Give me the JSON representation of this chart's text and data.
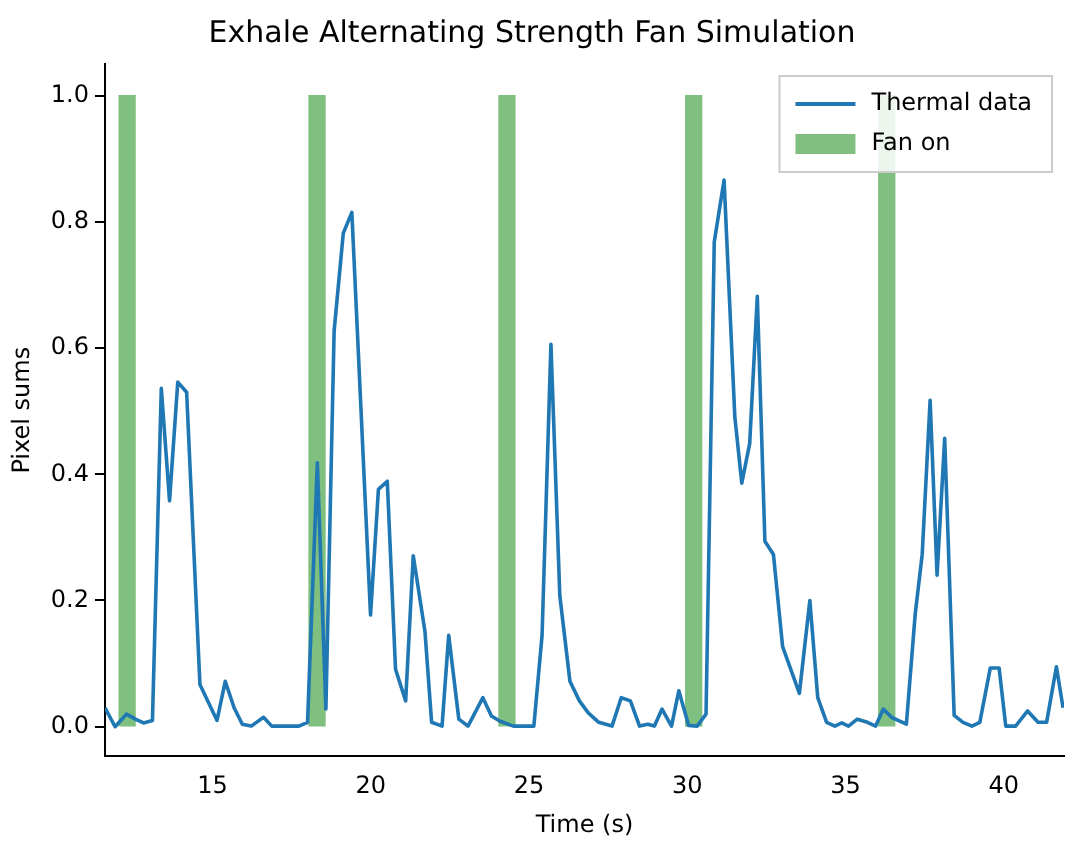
{
  "chart_data": {
    "type": "line",
    "title": "Exhale Alternating Strength Fan Simulation",
    "xlabel": "Time (s)",
    "ylabel": "Pixel sums",
    "xlim": [
      11.6,
      41.9
    ],
    "xticks": [
      15,
      20,
      25,
      30,
      35,
      40
    ],
    "ylim": [
      -0.047,
      1.05
    ],
    "yticks": [
      {
        "value": 0,
        "label": "0.0"
      },
      {
        "value": 0.2,
        "label": "0.2"
      },
      {
        "value": 0.4,
        "label": "0.4"
      },
      {
        "value": 0.6,
        "label": "0.6"
      },
      {
        "value": 0.8,
        "label": "0.8"
      },
      {
        "value": 1,
        "label": "1.0"
      }
    ],
    "grid": false,
    "legend": "top right",
    "marker": "none",
    "line_style": "solid",
    "series": [
      {
        "name": "Thermal data",
        "color": "#1f77b4",
        "x": [
          11.6,
          11.92,
          12.28,
          12.56,
          12.82,
          13.1,
          13.38,
          13.64,
          13.9,
          14.18,
          14.6,
          15.14,
          15.4,
          15.68,
          15.94,
          16.22,
          16.61,
          16.87,
          17.73,
          18.0,
          18.31,
          18.58,
          18.84,
          19.13,
          19.4,
          19.99,
          20.24,
          20.52,
          20.78,
          21.1,
          21.34,
          21.71,
          21.92,
          22.25,
          22.46,
          22.78,
          23.07,
          23.54,
          23.81,
          24.07,
          24.5,
          25.15,
          25.41,
          25.69,
          25.97,
          26.29,
          26.59,
          26.87,
          27.2,
          27.62,
          27.91,
          28.2,
          28.49,
          28.75,
          28.96,
          29.2,
          29.5,
          29.73,
          30.04,
          30.31,
          30.59,
          30.85,
          31.16,
          31.5,
          31.72,
          31.97,
          32.21,
          32.45,
          32.72,
          33.01,
          33.54,
          33.87,
          34.12,
          34.4,
          34.66,
          34.88,
          35.09,
          35.37,
          35.69,
          35.95,
          36.19,
          36.45,
          36.92,
          37.2,
          37.42,
          37.67,
          37.89,
          38.13,
          38.43,
          38.71,
          38.99,
          39.24,
          39.57,
          39.85,
          40.06,
          40.37,
          40.75,
          41.08,
          41.35,
          41.66,
          41.87
        ],
        "values": [
          0.03,
          0.0,
          0.02,
          0.012,
          0.006,
          0.01,
          0.536,
          0.358,
          0.546,
          0.53,
          0.067,
          0.01,
          0.072,
          0.03,
          0.004,
          0.001,
          0.015,
          0.001,
          0.001,
          0.007,
          0.418,
          0.028,
          0.627,
          0.782,
          0.815,
          0.177,
          0.376,
          0.389,
          0.091,
          0.041,
          0.271,
          0.151,
          0.007,
          0.001,
          0.145,
          0.012,
          0.001,
          0.046,
          0.017,
          0.009,
          0.001,
          0.001,
          0.145,
          0.606,
          0.208,
          0.072,
          0.041,
          0.022,
          0.007,
          0.001,
          0.046,
          0.041,
          0.001,
          0.004,
          0.001,
          0.028,
          0.001,
          0.057,
          0.002,
          0.001,
          0.02,
          0.768,
          0.866,
          0.491,
          0.386,
          0.449,
          0.682,
          0.294,
          0.273,
          0.127,
          0.053,
          0.2,
          0.046,
          0.007,
          0.001,
          0.006,
          0.001,
          0.012,
          0.007,
          0.001,
          0.028,
          0.015,
          0.004,
          0.179,
          0.273,
          0.517,
          0.24,
          0.457,
          0.018,
          0.007,
          0.001,
          0.007,
          0.093,
          0.093,
          0.001,
          0.001,
          0.025,
          0.007,
          0.007,
          0.095,
          0.03
        ]
      },
      {
        "name": "Fan on",
        "type": "bar",
        "color": "#7fbf7f",
        "x": [
          12.3,
          18.3,
          24.3,
          30.2,
          36.3
        ],
        "values": [
          1,
          1,
          1,
          1,
          1
        ]
      }
    ]
  }
}
